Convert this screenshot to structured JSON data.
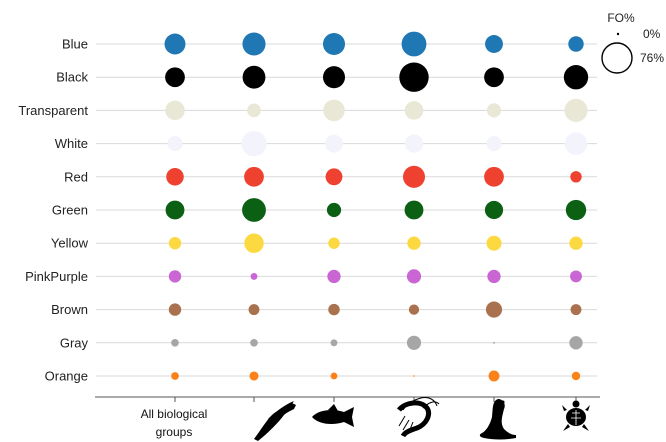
{
  "chart_data": {
    "type": "bubble-matrix",
    "rows": [
      "Blue",
      "Black",
      "Transparent",
      "White",
      "Red",
      "Green",
      "Yellow",
      "PinkPurple",
      "Brown",
      "Gray",
      "Orange"
    ],
    "row_colors": [
      "#1f77b4",
      "#000000",
      "#e9e8d6",
      "#f3f3fb",
      "#ef4130",
      "#0b6014",
      "#fcd841",
      "#c966d4",
      "#a9714e",
      "#a6a6a6",
      "#fb8219"
    ],
    "columns": [
      {
        "label_line1": "All biological",
        "label_line2": "groups",
        "icon": ""
      },
      {
        "label_line1": "",
        "label_line2": "",
        "icon": "bird-icon"
      },
      {
        "label_line1": "",
        "label_line2": "",
        "icon": "fish-icon"
      },
      {
        "label_line1": "",
        "label_line2": "",
        "icon": "shrimp-icon"
      },
      {
        "label_line1": "",
        "label_line2": "",
        "icon": "seal-icon"
      },
      {
        "label_line1": "",
        "label_line2": "",
        "icon": "turtle-icon"
      }
    ],
    "values": [
      [
        37,
        45,
        41,
        52,
        27,
        20
      ],
      [
        33,
        44,
        41,
        73,
        33,
        50
      ],
      [
        32,
        16,
        39,
        29,
        17,
        45
      ],
      [
        19,
        54,
        27,
        28,
        19,
        43
      ],
      [
        26,
        33,
        24,
        41,
        33,
        11
      ],
      [
        30,
        48,
        17,
        30,
        28,
        35
      ],
      [
        13,
        32,
        11,
        15,
        19,
        15
      ],
      [
        13,
        4,
        15,
        17,
        15,
        12
      ],
      [
        13,
        10,
        11,
        9,
        22,
        10
      ],
      [
        5,
        5,
        4,
        17,
        0.3,
        15
      ],
      [
        5,
        7,
        4,
        0.2,
        10,
        6
      ]
    ],
    "size_legend": {
      "title": "FO%",
      "min_label": "0%",
      "max_label": "76%",
      "max_value": 76
    }
  }
}
